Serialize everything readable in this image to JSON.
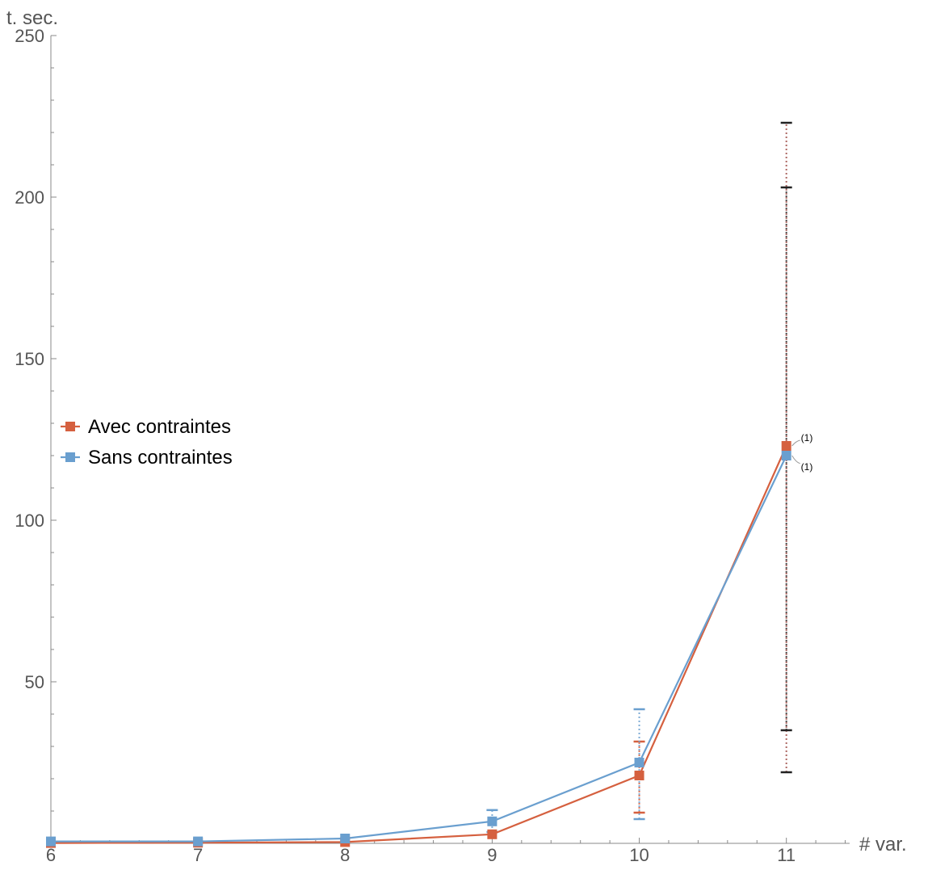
{
  "chart_data": {
    "type": "line",
    "title": "",
    "xlabel": "# var.",
    "ylabel": "t. sec.",
    "x": [
      6,
      7,
      8,
      9,
      10,
      11
    ],
    "xlim": [
      6,
      11.43
    ],
    "ylim": [
      0,
      250
    ],
    "x_ticks": [
      "6",
      "7",
      "8",
      "9",
      "10",
      "11"
    ],
    "y_ticks": [
      "50",
      "100",
      "150",
      "200",
      "250"
    ],
    "grid": false,
    "legend_position": "left-middle",
    "series": [
      {
        "name": "Avec contraintes",
        "color": "#d5603f",
        "values": [
          0.1,
          0.2,
          0.4,
          2.8,
          21,
          123
        ],
        "error_low": [
          null,
          null,
          null,
          null,
          9.5,
          22
        ],
        "error_high": [
          null,
          null,
          null,
          null,
          31.5,
          223
        ],
        "annotations": [
          "",
          "",
          "",
          "",
          "",
          "(1)"
        ]
      },
      {
        "name": "Sans contraintes",
        "color": "#6a9fcf",
        "values": [
          0.6,
          0.6,
          1.5,
          6.8,
          25,
          120
        ],
        "error_low": [
          null,
          null,
          null,
          3.5,
          7.5,
          35
        ],
        "error_high": [
          null,
          null,
          null,
          10.3,
          41.5,
          203
        ],
        "annotations": [
          "",
          "",
          "",
          "",
          "",
          "(1)"
        ]
      }
    ]
  }
}
